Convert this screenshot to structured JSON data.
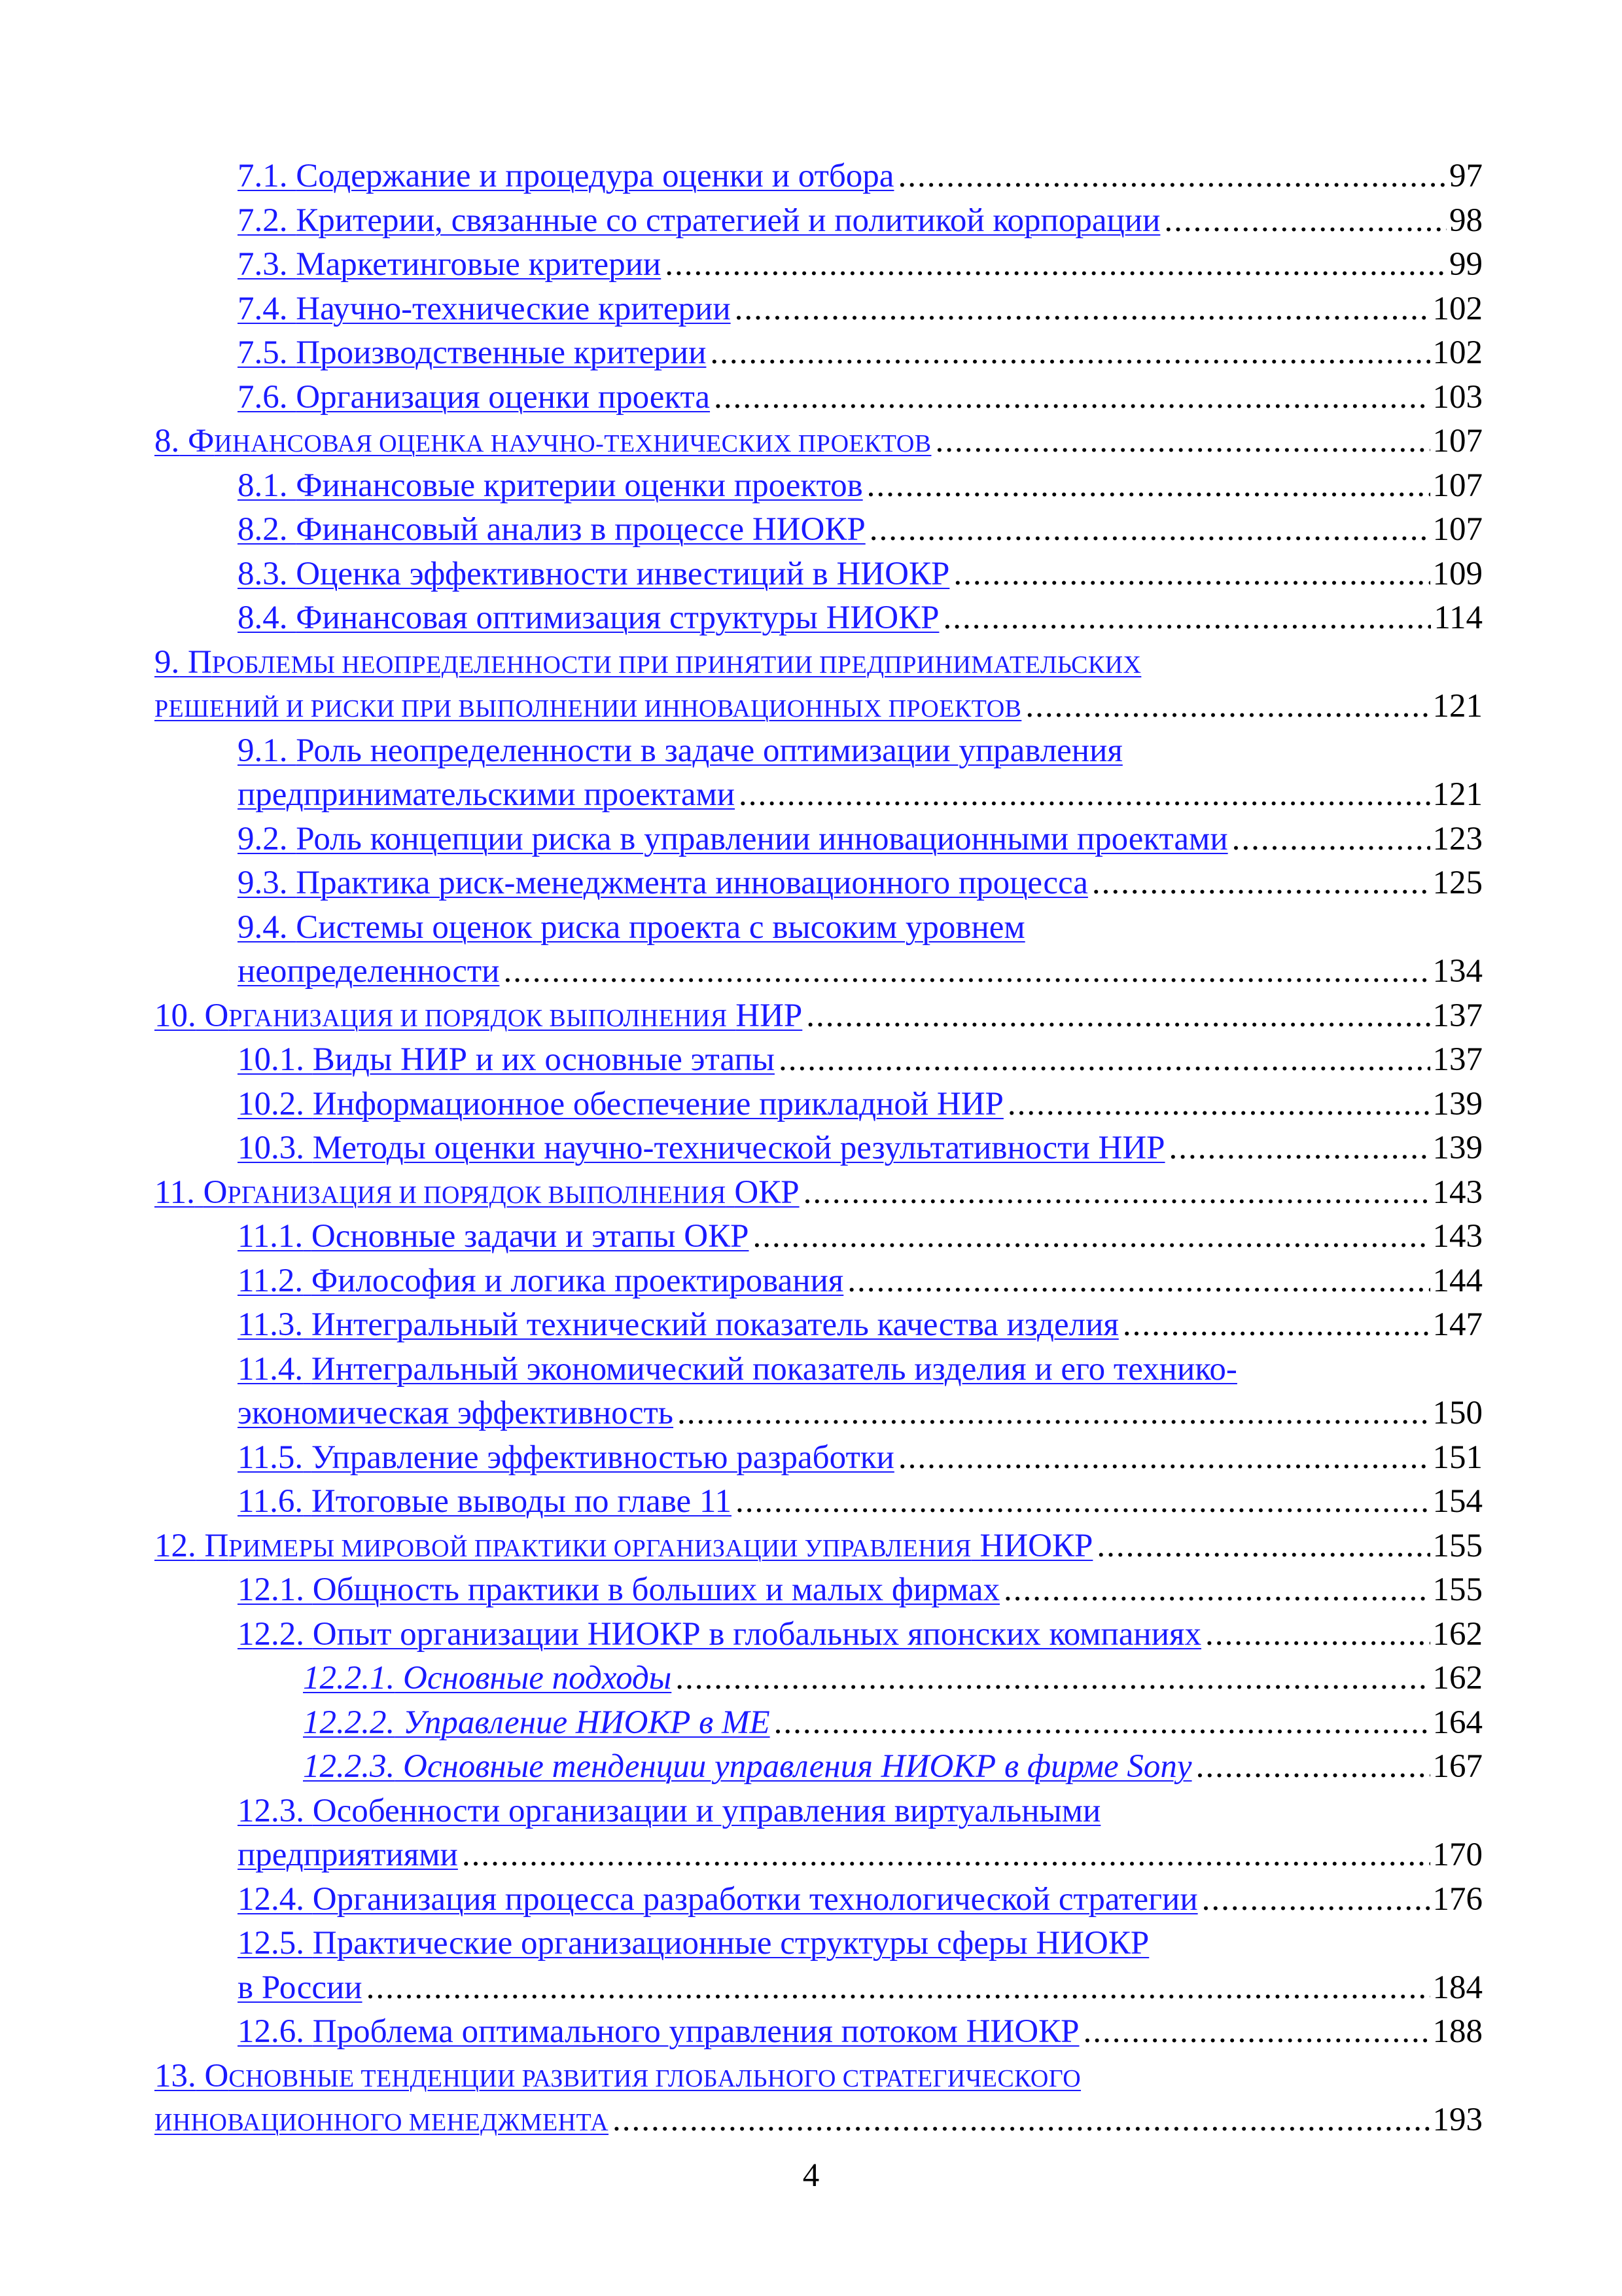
{
  "toc": {
    "entries": [
      {
        "num": "7.1.",
        "title": "Содержание и процедура оценки и отбора",
        "page": "97"
      },
      {
        "num": "7.2.",
        "title": "Критерии, связанные со стратегией и политикой корпорации",
        "page": "98"
      },
      {
        "num": "7.3.",
        "title": "Маркетинговые критерии",
        "page": "99"
      },
      {
        "num": "7.4.",
        "title": "Научно-технические критерии",
        "page": "102"
      },
      {
        "num": "7.5.",
        "title": "Производственные критерии",
        "page": "102"
      },
      {
        "num": "7.6.",
        "title": "Организация оценки проекта",
        "page": "103"
      },
      {
        "num": "8.",
        "cap": "Ф",
        "small": "ИНАНСОВАЯ ОЦЕНКА НАУЧНО-ТЕХНИЧЕСКИХ ПРОЕКТОВ",
        "page": "107"
      },
      {
        "num": "8.1.",
        "title": "Финансовые критерии оценки проектов",
        "page": "107"
      },
      {
        "num": "8.2.",
        "title": "Финансовый анализ в процессе НИОКР",
        "page": "107"
      },
      {
        "num": "8.3.",
        "title": "Оценка эффективности инвестиций в НИОКР",
        "page": "109"
      },
      {
        "num": "8.4.",
        "title": "Финансовая оптимизация структуры НИОКР",
        "page": "114"
      },
      {
        "num": "9.",
        "cap": "П",
        "small": "РОБЛЕМЫ НЕОПРЕДЕЛЕННОСТИ ПРИ ПРИНЯТИИ ПРЕДПРИНИМАТЕЛЬСКИХ",
        "small2": "РЕШЕНИЙ И РИСКИ ПРИ ВЫПОЛНЕНИИ ИННОВАЦИОННЫХ ПРОЕКТОВ",
        "page": "121"
      },
      {
        "num": "9.1.",
        "title": "Роль неопределенности в задаче оптимизации управления",
        "title2": "предпринимательскими проектами",
        "page": "121"
      },
      {
        "num": "9.2.",
        "title": "Роль концепции риска в управлении инновационными проектами",
        "page": "123"
      },
      {
        "num": "9.3.",
        "title": "Практика риск-менеджмента инновационного процесса",
        "page": "125"
      },
      {
        "num": "9.4.",
        "title": "Системы оценок риска проекта с высоким уровнем",
        "title2": "неопределенности",
        "page": "134"
      },
      {
        "num": "10.",
        "cap": "О",
        "small": "РГАНИЗАЦИЯ И ПОРЯДОК ВЫПОЛНЕНИЯ",
        "tail": "НИР",
        "page": "137"
      },
      {
        "num": "10.1.",
        "title": "Виды НИР и их основные этапы",
        "page": "137"
      },
      {
        "num": "10.2.",
        "title": "Информационное обеспечение прикладной НИР",
        "page": "139"
      },
      {
        "num": "10.3.",
        "title": "Методы оценки научно-технической результативности НИР",
        "page": "139"
      },
      {
        "num": "11.",
        "cap": "О",
        "small": "РГАНИЗАЦИЯ И ПОРЯДОК ВЫПОЛНЕНИЯ",
        "tail": "ОКР",
        "page": "143"
      },
      {
        "num": "11.1.",
        "title": "Основные задачи и этапы ОКР",
        "page": "143"
      },
      {
        "num": "11.2.",
        "title": "Философия и логика проектирования",
        "page": "144"
      },
      {
        "num": "11.3.",
        "title": "Интегральный технический показатель качества изделия",
        "page": "147"
      },
      {
        "num": "11.4.",
        "title": "Интегральный экономический показатель изделия и его технико-",
        "title2": "экономическая эффективность",
        "page": "150"
      },
      {
        "num": "11.5.",
        "title": "Управление эффективностью разработки",
        "page": "151"
      },
      {
        "num": "11.6.",
        "title": "Итоговые выводы по главе 11",
        "page": "154"
      },
      {
        "num": "12.",
        "cap": "П",
        "small": "РИМЕРЫ МИРОВОЙ ПРАКТИКИ ОРГАНИЗАЦИИ УПРАВЛЕНИЯ",
        "tail": "НИОКР",
        "page": "155"
      },
      {
        "num": "12.1.",
        "title": "Общность практики в больших и малых фирмах",
        "page": "155"
      },
      {
        "num": "12.2.",
        "title": "Опыт организации НИОКР в глобальных японских компаниях",
        "page": "162"
      },
      {
        "num": "12.2.1.",
        "title": "Основные подходы",
        "page": "162"
      },
      {
        "num": "12.2.2.",
        "title": "Управление НИОКР в МЕ",
        "page": "164"
      },
      {
        "num": "12.2.3.",
        "title": "Основные тенденции управления НИОКР в фирме Sony",
        "page": "167"
      },
      {
        "num": "12.3.",
        "title": "Особенности организации и управления виртуальными",
        "title2": "предприятиями",
        "page": "170"
      },
      {
        "num": "12.4.",
        "title": "Организация процесса разработки технологической стратегии",
        "page": "176"
      },
      {
        "num": "12.5.",
        "title": "Практические организационные структуры сферы НИОКР",
        "title2": "в России",
        "page": "184"
      },
      {
        "num": "12.6.",
        "title": "Проблема оптимального управления потоком НИОКР",
        "page": "188"
      },
      {
        "num": "13.",
        "cap": "О",
        "small": "СНОВНЫЕ ТЕНДЕНЦИИ РАЗВИТИЯ ГЛОБАЛЬНОГО СТРАТЕГИЧЕСКОГО",
        "small2": "ИННОВАЦИОННОГО МЕНЕДЖМЕНТА",
        "page": "193"
      }
    ]
  },
  "footer": {
    "page_number": "4"
  }
}
